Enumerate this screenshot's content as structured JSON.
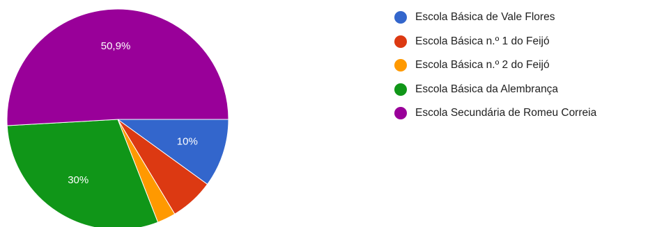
{
  "chart_data": {
    "type": "pie",
    "slices": [
      {
        "label": "Escola Básica de Vale Flores",
        "value": 10,
        "display": "10%",
        "color": "#3366cc"
      },
      {
        "label": "Escola Básica n.º 1 do Feijó",
        "value": 6.4,
        "display": "",
        "color": "#dc3912"
      },
      {
        "label": "Escola Básica n.º 2 do Feijó",
        "value": 2.7,
        "display": "",
        "color": "#ff9900"
      },
      {
        "label": "Escola Básica da Alembrança",
        "value": 30,
        "display": "30%",
        "color": "#109618"
      },
      {
        "label": "Escola Secundária de Romeu Correia",
        "value": 50.9,
        "display": "50,9%",
        "color": "#990099"
      }
    ],
    "legend_position": "right"
  }
}
